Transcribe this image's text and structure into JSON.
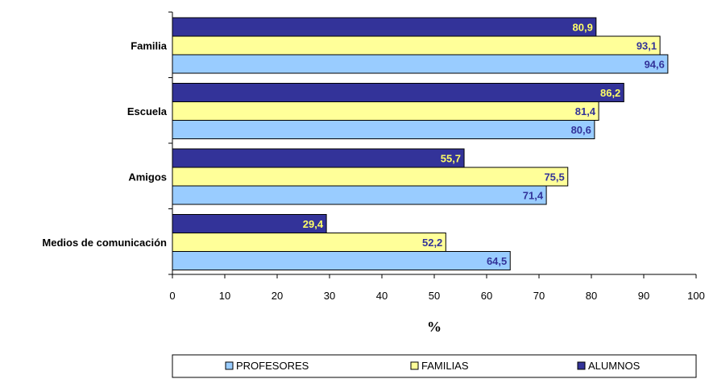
{
  "chart_data": {
    "type": "bar",
    "orientation": "horizontal",
    "categories": [
      "Familia",
      "Escuela",
      "Amigos",
      "Medios de comunicación"
    ],
    "series": [
      {
        "name": "ALUMNOS",
        "color": "#333399",
        "label_color": "#FFFF66",
        "values": [
          80.9,
          86.2,
          55.7,
          29.4
        ],
        "labels": [
          "80,9",
          "86,2",
          "55,7",
          "29,4"
        ]
      },
      {
        "name": "FAMILIAS",
        "color": "#FFFF99",
        "label_color": "#333399",
        "values": [
          93.1,
          81.4,
          75.5,
          52.2
        ],
        "labels": [
          "93,1",
          "81,4",
          "75,5",
          "52,2"
        ]
      },
      {
        "name": "PROFESORES",
        "color": "#99CCFF",
        "label_color": "#333399",
        "values": [
          94.6,
          80.6,
          71.4,
          64.5
        ],
        "labels": [
          "94,6",
          "80,6",
          "71,4",
          "64,5"
        ]
      }
    ],
    "xlim": [
      0,
      100
    ],
    "xticks": [
      "0",
      "10",
      "20",
      "30",
      "40",
      "50",
      "60",
      "70",
      "80",
      "90",
      "100"
    ],
    "xlabel": "%",
    "ylabel": "",
    "title": "",
    "grid": false,
    "legend": {
      "position": "bottom",
      "entries": [
        "PROFESORES",
        "FAMILIAS",
        "ALUMNOS"
      ]
    }
  }
}
